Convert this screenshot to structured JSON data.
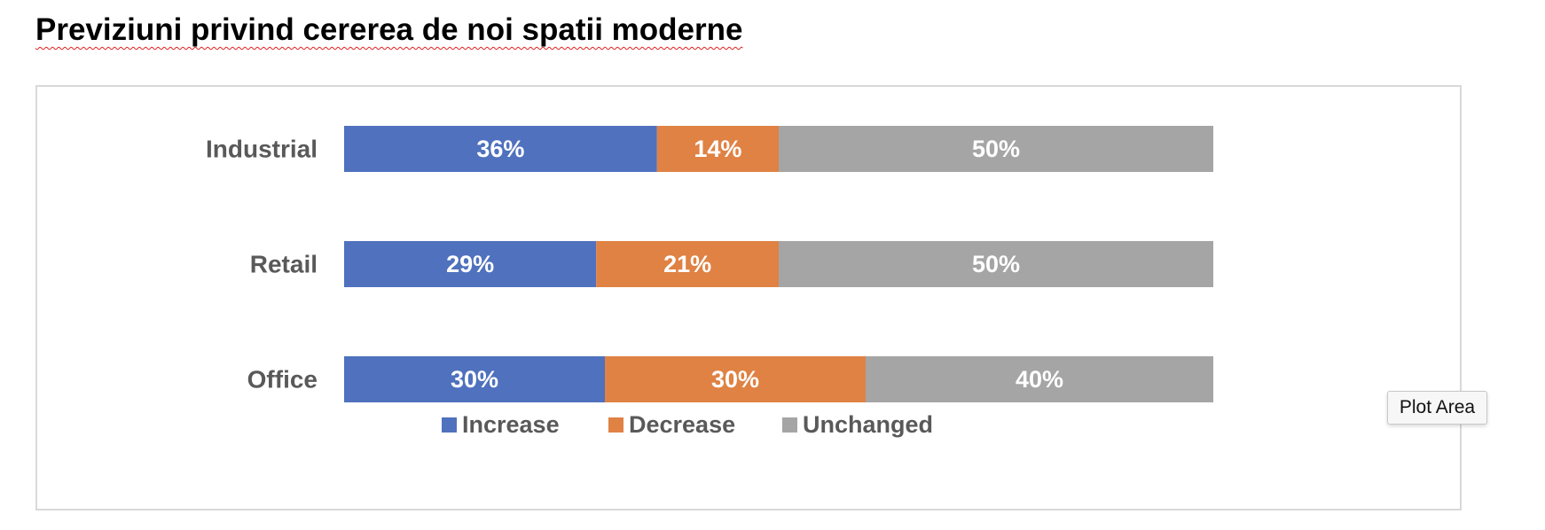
{
  "document": {
    "heading": "Previziuni privind cererea de noi spatii moderne"
  },
  "tooltip": {
    "label": "Plot Area"
  },
  "chart_data": {
    "type": "bar",
    "orientation": "horizontal",
    "stacked": true,
    "categories": [
      "Industrial",
      "Retail",
      "Office"
    ],
    "series": [
      {
        "name": "Increase",
        "values": [
          36,
          29,
          30
        ],
        "labels": [
          "36%",
          "29%",
          "30%"
        ],
        "color": "#4f71be"
      },
      {
        "name": "Decrease",
        "values": [
          14,
          21,
          30
        ],
        "labels": [
          "14%",
          "21%",
          "30%"
        ],
        "color": "#df8244"
      },
      {
        "name": "Unchanged",
        "values": [
          50,
          50,
          40
        ],
        "labels": [
          "50%",
          "50%",
          "40%"
        ],
        "color": "#a5a5a5"
      }
    ],
    "xlim": [
      0,
      100
    ],
    "grid": false,
    "legend_position": "bottom",
    "data_label_color": "#ffffff",
    "category_label_color": "#595959"
  }
}
